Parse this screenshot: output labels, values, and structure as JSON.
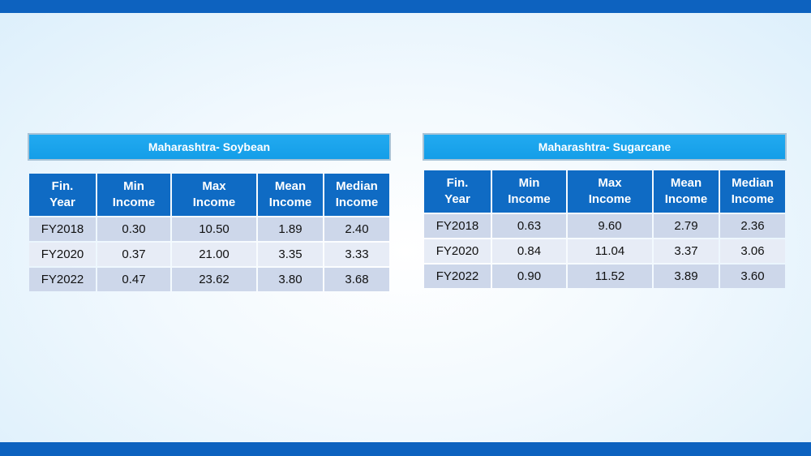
{
  "tables": [
    {
      "title": "Maharashtra- Soybean",
      "headers": [
        [
          "Fin.",
          "Year"
        ],
        [
          "Min",
          "Income"
        ],
        [
          "Max",
          "Income"
        ],
        [
          "Mean",
          "Income"
        ],
        [
          "Median",
          "Income"
        ]
      ],
      "rows": [
        [
          "FY2018",
          "0.30",
          "10.50",
          "1.89",
          "2.40"
        ],
        [
          "FY2020",
          "0.37",
          "21.00",
          "3.35",
          "3.33"
        ],
        [
          "FY2022",
          "0.47",
          "23.62",
          "3.80",
          "3.68"
        ]
      ]
    },
    {
      "title": "Maharashtra- Sugarcane",
      "headers": [
        [
          "Fin.",
          "Year"
        ],
        [
          "Min",
          "Income"
        ],
        [
          "Max",
          "Income"
        ],
        [
          "Mean",
          "Income"
        ],
        [
          "Median",
          "Income"
        ]
      ],
      "rows": [
        [
          "FY2018",
          "0.63",
          "9.60",
          "2.79",
          "2.36"
        ],
        [
          "FY2020",
          "0.84",
          "11.04",
          "3.37",
          "3.06"
        ],
        [
          "FY2022",
          "0.90",
          "11.52",
          "3.89",
          "3.60"
        ]
      ]
    }
  ],
  "colors": {
    "top_bar": "#0d62bf",
    "title_box": "#149ee8",
    "header_cell": "#0f6bc4",
    "row_dark": "#cdd7ea",
    "row_light": "#e7ecf6"
  }
}
